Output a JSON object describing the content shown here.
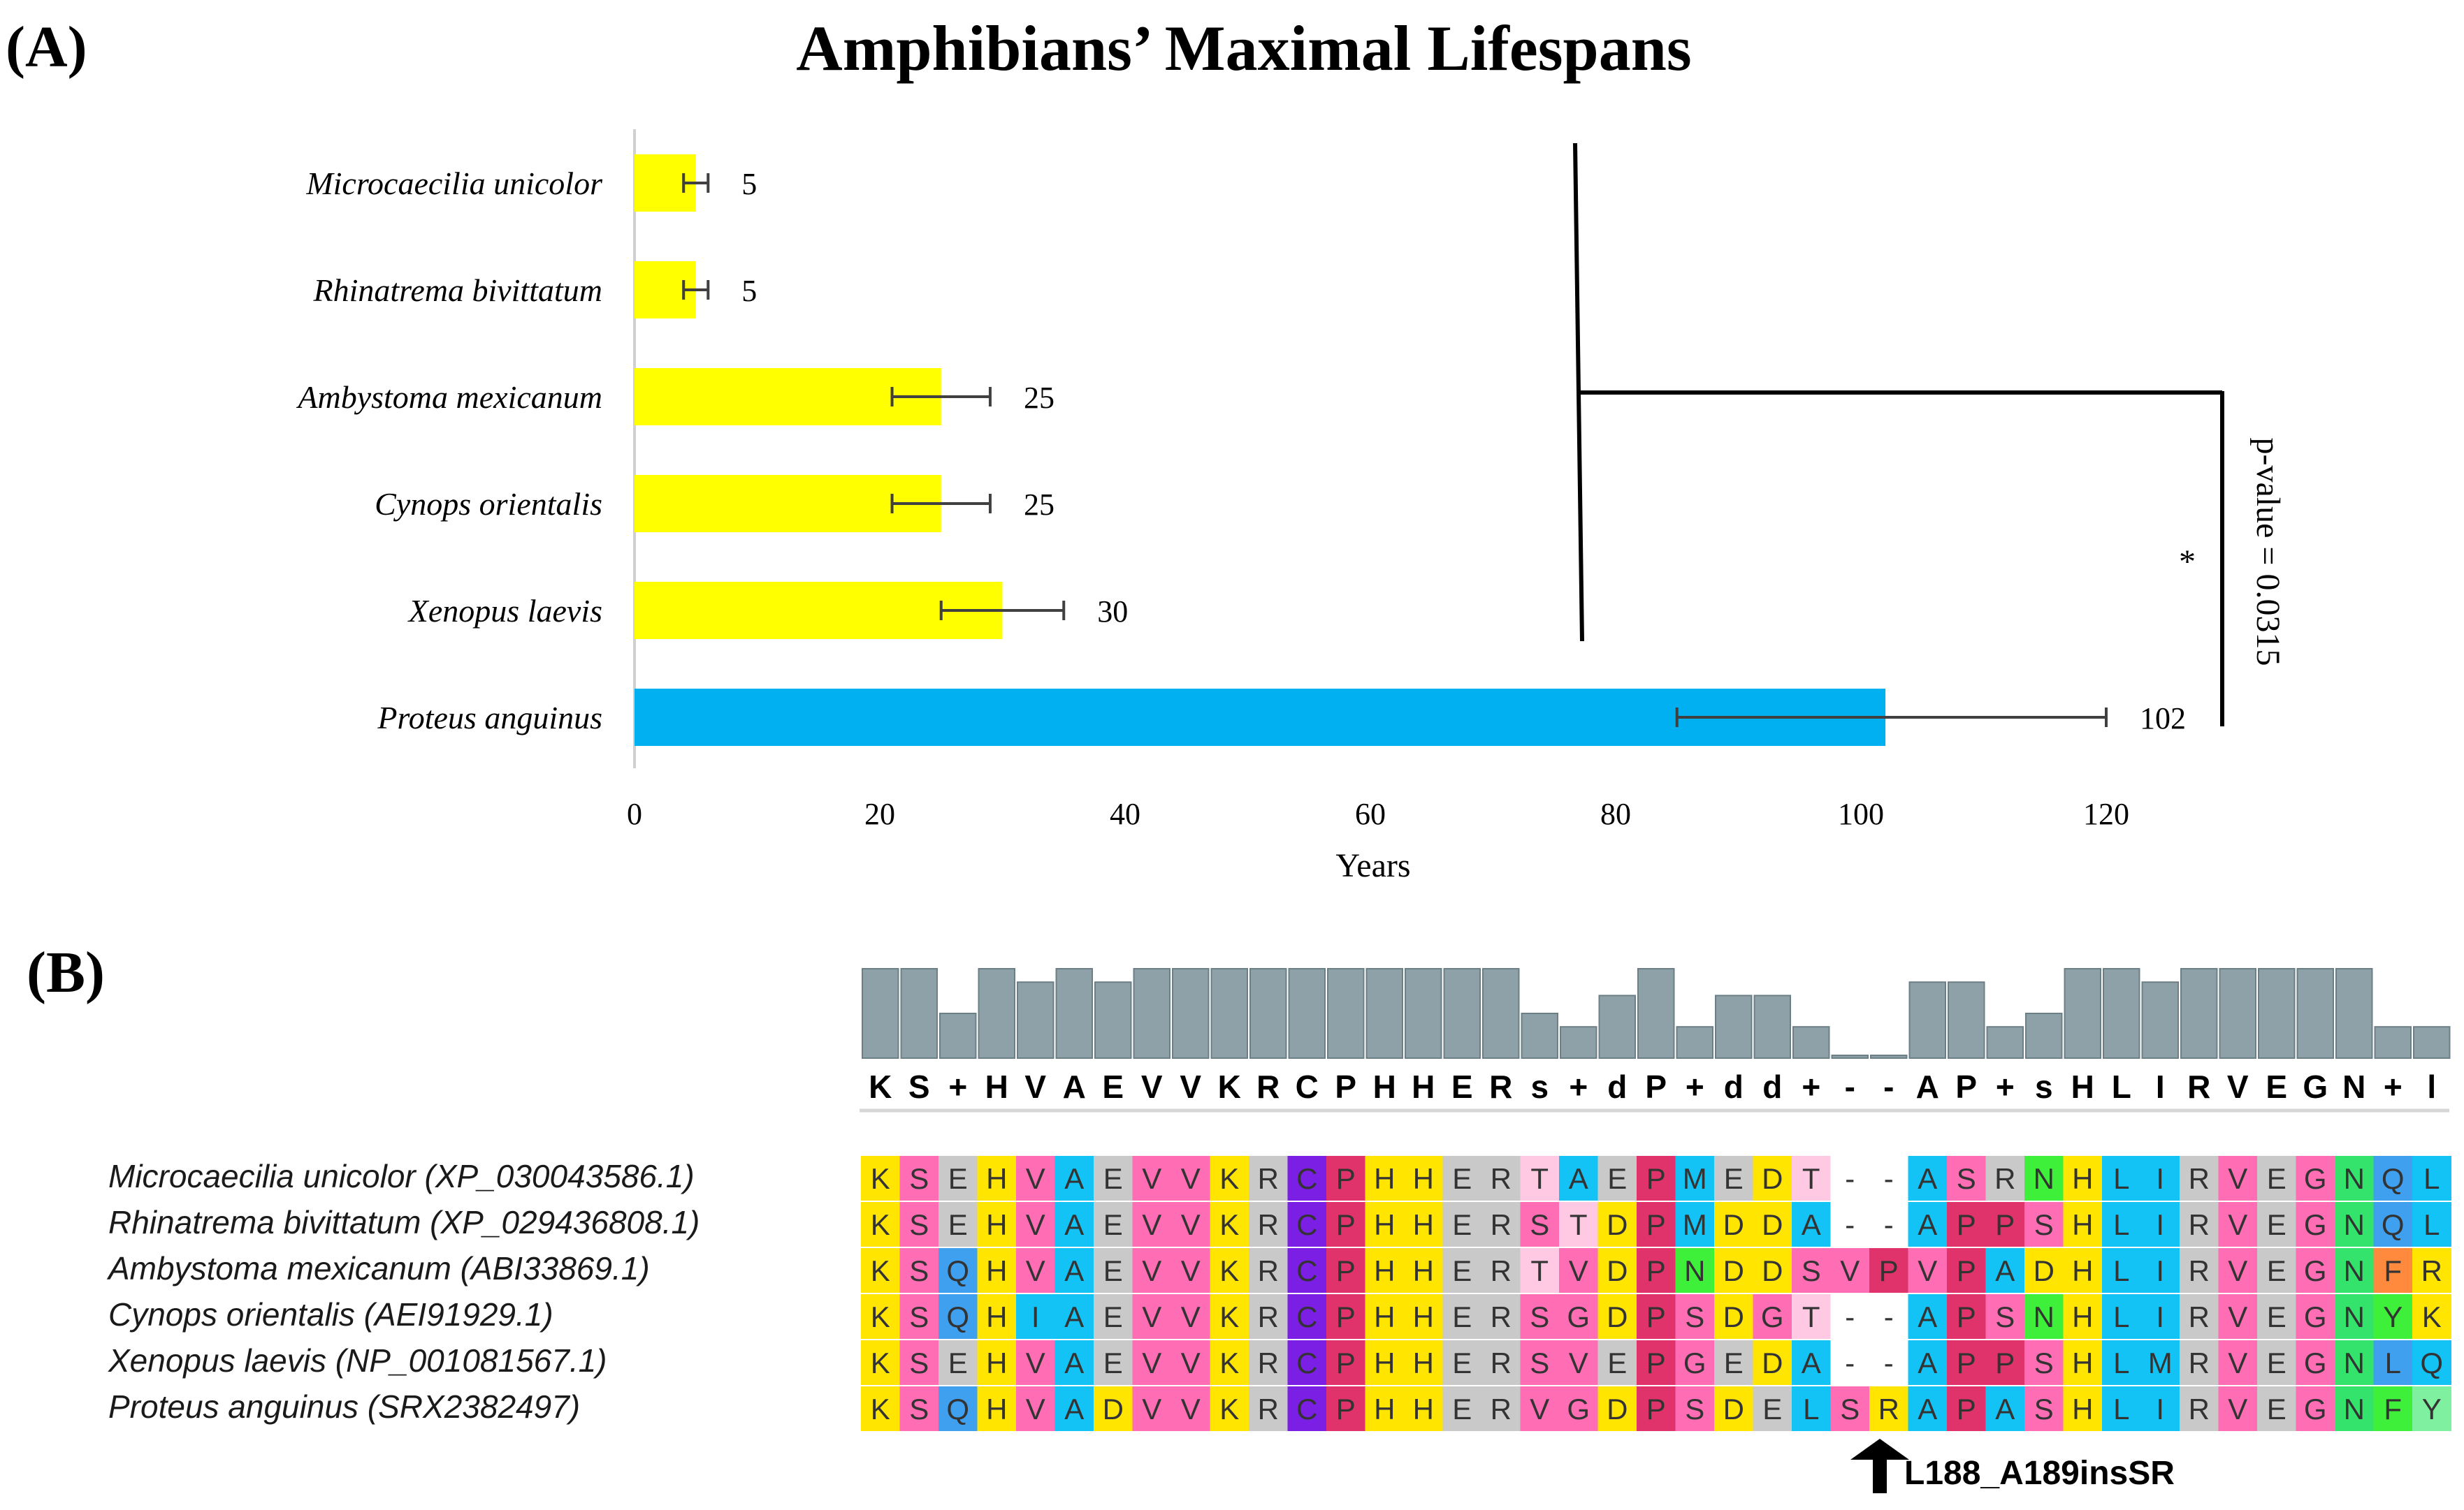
{
  "panel_a": {
    "label": "(A)",
    "chart_data": {
      "type": "bar",
      "orientation": "horizontal",
      "title": "Amphibians’ Maximal Lifespans",
      "xlabel": "Years",
      "ylabel": "",
      "xlim": [
        0,
        130
      ],
      "xticks": [
        "0",
        "20",
        "40",
        "60",
        "80",
        "100",
        "120"
      ],
      "categories": [
        "Microcaecilia unicolor",
        "Rhinatrema bivittatum",
        "Ambystoma mexicanum",
        "Cynops orientalis",
        "Xenopus laevis",
        "Proteus anguinus"
      ],
      "values": [
        5,
        5,
        25,
        25,
        30,
        102
      ],
      "value_labels": [
        "5",
        "5",
        "25",
        "25",
        "30",
        "102"
      ],
      "error_low": [
        4,
        4,
        21,
        21,
        25,
        85
      ],
      "error_high": [
        6,
        6,
        29,
        29,
        35,
        120
      ],
      "colors": [
        "#ffff00",
        "#ffff00",
        "#ffff00",
        "#ffff00",
        "#ffff00",
        "#00b0f0"
      ],
      "significance": {
        "star": "*",
        "pvalue_text": "p-value = 0.0315"
      }
    }
  },
  "panel_b": {
    "label": "(B)",
    "consensus": [
      "K",
      "S",
      "+",
      "H",
      "V",
      "A",
      "E",
      "V",
      "V",
      "K",
      "R",
      "C",
      "P",
      "H",
      "H",
      "E",
      "R",
      "s",
      "+",
      "d",
      "P",
      "+",
      "d",
      "d",
      "+",
      "-",
      "-",
      "A",
      "P",
      "+",
      "s",
      "H",
      "L",
      "I",
      "R",
      "V",
      "E",
      "G",
      "N",
      "+",
      "l"
    ],
    "conservation": [
      10,
      10,
      5,
      10,
      8.5,
      10,
      8.5,
      10,
      10,
      10,
      10,
      10,
      10,
      10,
      10,
      10,
      10,
      5,
      3.5,
      7,
      10,
      3.5,
      7,
      7,
      3.5,
      0.3,
      0.3,
      8.5,
      8.5,
      3.5,
      5,
      10,
      10,
      8.5,
      10,
      10,
      10,
      10,
      10,
      3.5,
      3.5
    ],
    "species": [
      "Microcaecilia unicolor (XP_030043586.1)",
      "Rhinatrema bivittatum (XP_029436808.1)",
      "Ambystoma mexicanum (ABI33869.1)",
      "Cynops orientalis (AEI91929.1)",
      "Xenopus laevis (NP_001081567.1)",
      "Proteus anguinus (SRX2382497)"
    ],
    "sequences": [
      "KSEHVAEVVKRCPHHERTAEPMEDT--ASRNHLIRVEGNQL",
      "KSEHVAEVVKRCPHHERSTDPMDDA--APPSHLIRVEGNQL",
      "KSQHVAEVVKRCPHHERTVDPNDDSVPVPADHLIRVEGNFR",
      "KSQHIAEVVKRCPHHERSGDPSDGT--APSNHLIRVEGNYK",
      "KSEHVAEVVKRCPHHERSVEPGEDA--APPSHLMRVEGNLQ",
      "KSQHVADVVKRCPHHERVGDPSDELSRAPASHLIRVEGNFY"
    ],
    "mutation_label": "L188_A189insSR",
    "residue_colors": {
      "K": "#ffe500",
      "S": "#ff6eb4",
      "E": "#c9c9c9",
      "Q": "#3fa0f0",
      "H": "#ffe500",
      "V": "#ff6eb4",
      "A": "#13c3f5",
      "D": "#ffe500",
      "I": "#13c3f5",
      "R": "#c9c9c9",
      "C": "#7b1fe4",
      "P": "#e0336b",
      "T": "#ffc9e3",
      "G": "#ff6eb4",
      "M": "#13c3f5",
      "N": "#3ff03a",
      "L": "#13c3f5",
      "F": "#3ff03a",
      "Y": "#3ff03a",
      "-": "#ffffff"
    },
    "overrides": {
      "0-38": "#33e36b",
      "0-39": "#3fa0f0",
      "0-40": "#13c3f5",
      "1-38": "#33e36b",
      "1-39": "#3fa0f0",
      "1-40": "#13c3f5",
      "2-38": "#33e36b",
      "2-39": "#ff8a3d",
      "2-40": "#ffe500",
      "3-38": "#33e36b",
      "3-39": "#3ff03a",
      "3-40": "#ffe500",
      "4-38": "#33e36b",
      "4-39": "#3fa0f0",
      "4-40": "#13c3f5",
      "5-38": "#33e36b",
      "5-39": "#3ff03a",
      "5-40": "#7ff0a0",
      "5-24": "#13c3f5",
      "5-25": "#ff6eb4",
      "5-26": "#ffe500",
      "2-25": "#ff6eb4",
      "2-26": "#e0336b"
    }
  }
}
